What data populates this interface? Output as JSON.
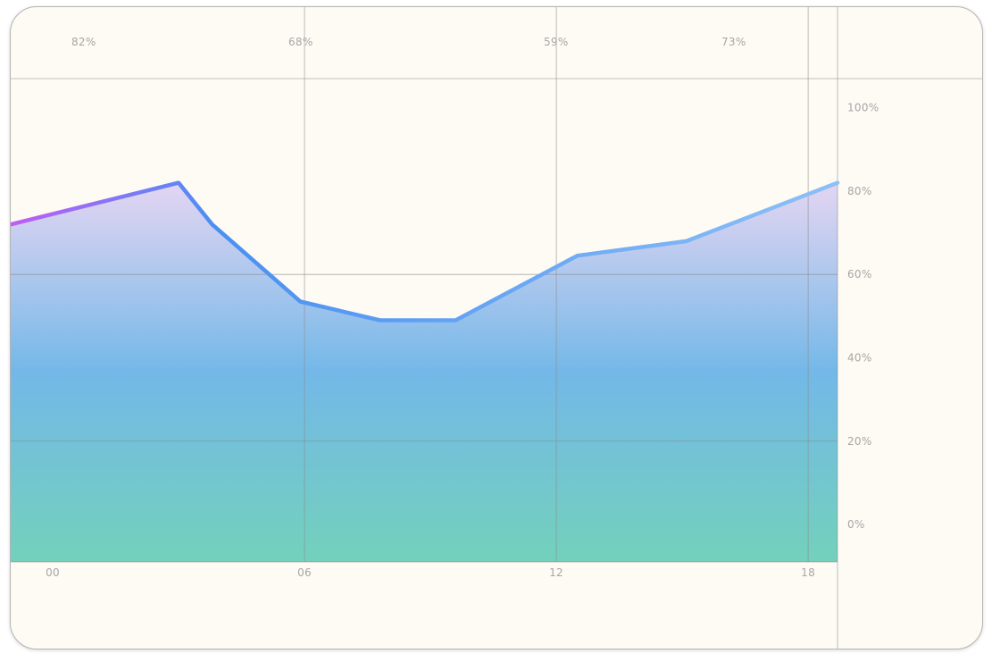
{
  "chart_data": {
    "type": "area",
    "x": [
      -1,
      3,
      3.8,
      5.9,
      7.8,
      9.6,
      12.5,
      15.1,
      18.7
    ],
    "values": [
      72,
      82,
      72,
      53.5,
      49,
      49,
      64.5,
      68,
      82
    ],
    "xlim": [
      -1,
      18.7
    ],
    "ylim": [
      -9,
      107
    ],
    "xticks": [
      {
        "x": 0,
        "label": "00"
      },
      {
        "x": 6,
        "label": "06"
      },
      {
        "x": 12,
        "label": "12"
      },
      {
        "x": 18,
        "label": "18"
      }
    ],
    "yticks": [
      {
        "y": 100,
        "label": "100%"
      },
      {
        "y": 80,
        "label": "80%"
      },
      {
        "y": 60,
        "label": "60%"
      },
      {
        "y": 40,
        "label": "40%"
      },
      {
        "y": 20,
        "label": "20%"
      },
      {
        "y": 0,
        "label": "0%"
      }
    ],
    "top_labels": [
      "82%",
      "68%",
      "59%",
      "73%"
    ],
    "grid": true,
    "colors": {
      "line_start": "#c15cf5",
      "line_mid": "#4a90f2",
      "line_end": "#8cc0f6",
      "fill_top": "#e2d3f2",
      "fill_mid": "#73b8e8",
      "fill_bottom": "#73d1bb",
      "grid": "#8a8a8a",
      "label": "#a6a6a6",
      "background": "#fdfbf4"
    }
  }
}
